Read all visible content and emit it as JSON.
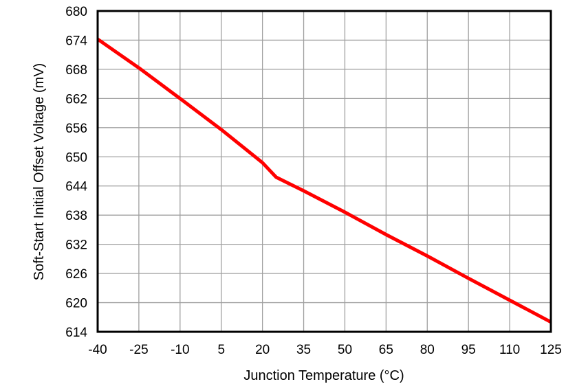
{
  "chart_data": {
    "type": "line",
    "title": "",
    "xlabel": "Junction Temperature (°C)",
    "ylabel": "Soft-Start Initial Offset Voltage (mV)",
    "xlim": [
      -40,
      125
    ],
    "ylim": [
      614,
      680
    ],
    "xticks": [
      "-40",
      "-25",
      "-10",
      "5",
      "20",
      "35",
      "50",
      "65",
      "80",
      "95",
      "110",
      "125"
    ],
    "yticks": [
      "614",
      "620",
      "626",
      "632",
      "638",
      "644",
      "650",
      "656",
      "662",
      "668",
      "674",
      "680"
    ],
    "grid": true,
    "legend": null,
    "series": [
      {
        "name": "Soft-Start Initial Offset Voltage",
        "color": "#ff0000",
        "x": [
          -40,
          -25,
          -10,
          5,
          20,
          25,
          35,
          50,
          65,
          80,
          95,
          110,
          125
        ],
        "y": [
          674.2,
          668.3,
          662.0,
          655.6,
          648.8,
          645.8,
          643.0,
          638.6,
          634.0,
          629.6,
          625.0,
          620.5,
          616.0
        ]
      }
    ]
  }
}
